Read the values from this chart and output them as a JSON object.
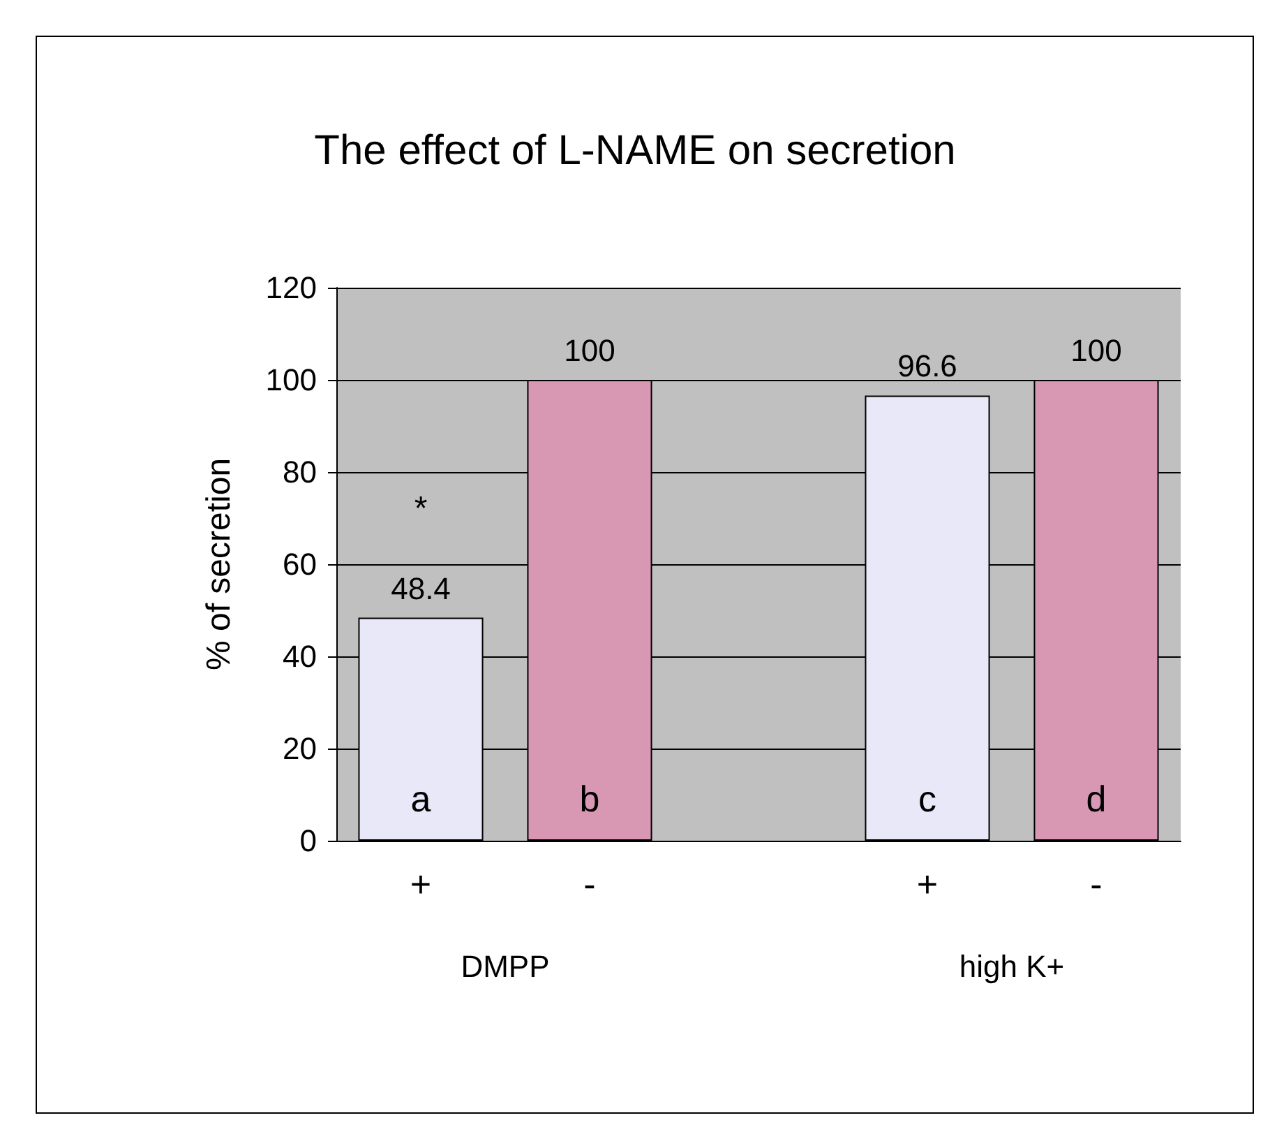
{
  "chart_data": {
    "type": "bar",
    "title": "The effect of L-NAME on secretion",
    "ylabel": "% of secretion",
    "categories": [
      "+",
      "-",
      null,
      "+",
      "-"
    ],
    "values": [
      48.4,
      100,
      null,
      96.6,
      100
    ],
    "colors": [
      "#e8e8f8",
      "#d898b4",
      null,
      "#e8e8f8",
      "#d898b4"
    ],
    "ylim": [
      0,
      120
    ],
    "yticks": [
      0,
      20,
      40,
      60,
      80,
      100,
      120
    ],
    "grid": "y",
    "data_labels": true,
    "annotations": [
      "*",
      "a",
      "b",
      "c",
      "d",
      "DMPP",
      "high K+"
    ]
  }
}
